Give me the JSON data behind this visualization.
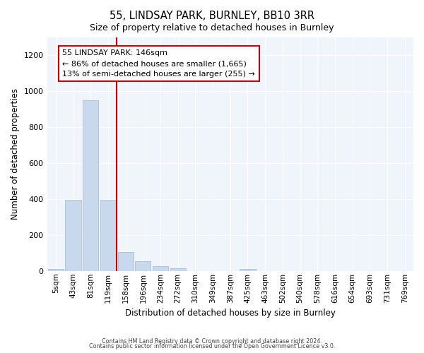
{
  "title1": "55, LINDSAY PARK, BURNLEY, BB10 3RR",
  "title2": "Size of property relative to detached houses in Burnley",
  "xlabel": "Distribution of detached houses by size in Burnley",
  "ylabel": "Number of detached properties",
  "bar_color": "#c9d9ed",
  "bar_edge_color": "#a0b8d8",
  "vline_color": "#cc0000",
  "annotation_text": "55 LINDSAY PARK: 146sqm\n← 86% of detached houses are smaller (1,665)\n13% of semi-detached houses are larger (255) →",
  "categories": [
    "5sqm",
    "43sqm",
    "81sqm",
    "119sqm",
    "158sqm",
    "196sqm",
    "234sqm",
    "272sqm",
    "310sqm",
    "349sqm",
    "387sqm",
    "425sqm",
    "463sqm",
    "502sqm",
    "540sqm",
    "578sqm",
    "616sqm",
    "654sqm",
    "693sqm",
    "731sqm",
    "769sqm"
  ],
  "values": [
    10,
    395,
    950,
    395,
    105,
    55,
    25,
    15,
    0,
    0,
    0,
    12,
    0,
    0,
    0,
    0,
    0,
    0,
    0,
    0,
    0
  ],
  "vline_index": 4,
  "ylim": [
    0,
    1300
  ],
  "yticks": [
    0,
    200,
    400,
    600,
    800,
    1000,
    1200
  ],
  "footer_line1": "Contains HM Land Registry data © Crown copyright and database right 2024.",
  "footer_line2": "Contains public sector information licensed under the Open Government Licence v3.0.",
  "bg_color": "#ffffff",
  "plot_bg_color": "#f0f4fb",
  "grid_color": "#ffffff",
  "fig_width": 6.0,
  "fig_height": 5.0
}
